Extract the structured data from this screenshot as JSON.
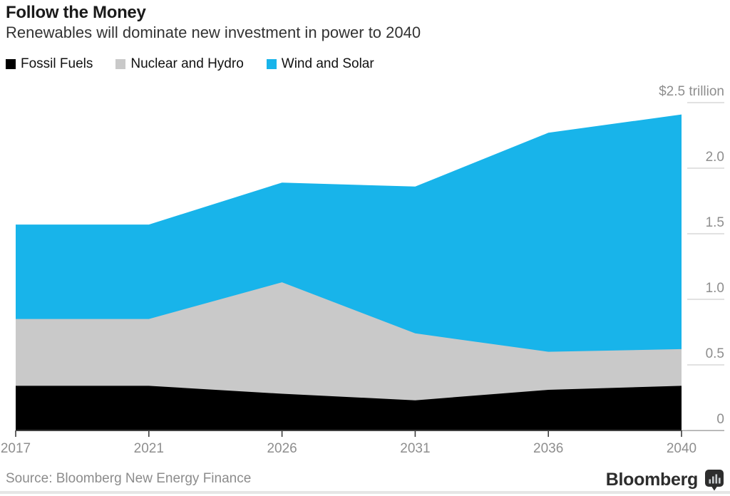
{
  "header": {
    "title": "Follow the Money",
    "subtitle": "Renewables will dominate new investment in power to 2040"
  },
  "chart_data": {
    "type": "area",
    "stacked": true,
    "title": "Follow the Money",
    "subtitle": "Renewables will dominate new investment in power to 2040",
    "unit": "US$ trillion per period",
    "categories": [
      "2017",
      "2021",
      "2026",
      "2031",
      "2036",
      "2040"
    ],
    "series": [
      {
        "name": "Fossil Fuels",
        "color": "#000000",
        "values": [
          0.34,
          0.34,
          0.28,
          0.23,
          0.31,
          0.34
        ]
      },
      {
        "name": "Nuclear and Hydro",
        "color": "#c9c9c9",
        "values": [
          0.51,
          0.51,
          0.85,
          0.51,
          0.29,
          0.28
        ]
      },
      {
        "name": "Wind and Solar",
        "color": "#18b4ea",
        "values": [
          0.72,
          0.72,
          0.76,
          1.12,
          1.67,
          1.79
        ]
      }
    ],
    "stacked_totals": [
      1.57,
      1.57,
      1.89,
      1.86,
      2.27,
      2.41
    ],
    "y_ticks": [
      0,
      0.5,
      1.0,
      1.5,
      2.0,
      2.5
    ],
    "y_tick_labels": [
      "0",
      "0.5",
      "1.0",
      "1.5",
      "2.0",
      "$2.5 trillion"
    ],
    "ylim": [
      0,
      2.5
    ],
    "x_spacing": "uniform category spacing",
    "grid": "right-side tick dashes only",
    "legend_position": "top-left"
  },
  "footer": {
    "source": "Source: Bloomberg New Energy Finance",
    "brand": "Bloomberg"
  },
  "icons": {
    "brand_mark": "bloomberg-chart-bubble-icon"
  },
  "colors": {
    "accent_cyan": "#18b4ea",
    "band_gray": "#c9c9c9",
    "band_black": "#000000",
    "axis_line": "#3e3e3e",
    "axis_extension": "#ababab",
    "grid_tick": "#d8d8d8",
    "axis_text": "#8e8e8e",
    "title_text": "#1a1a1a",
    "subtitle_text": "#333333",
    "source_text": "#8c8c8c",
    "brand_text": "#2d2d2d"
  }
}
